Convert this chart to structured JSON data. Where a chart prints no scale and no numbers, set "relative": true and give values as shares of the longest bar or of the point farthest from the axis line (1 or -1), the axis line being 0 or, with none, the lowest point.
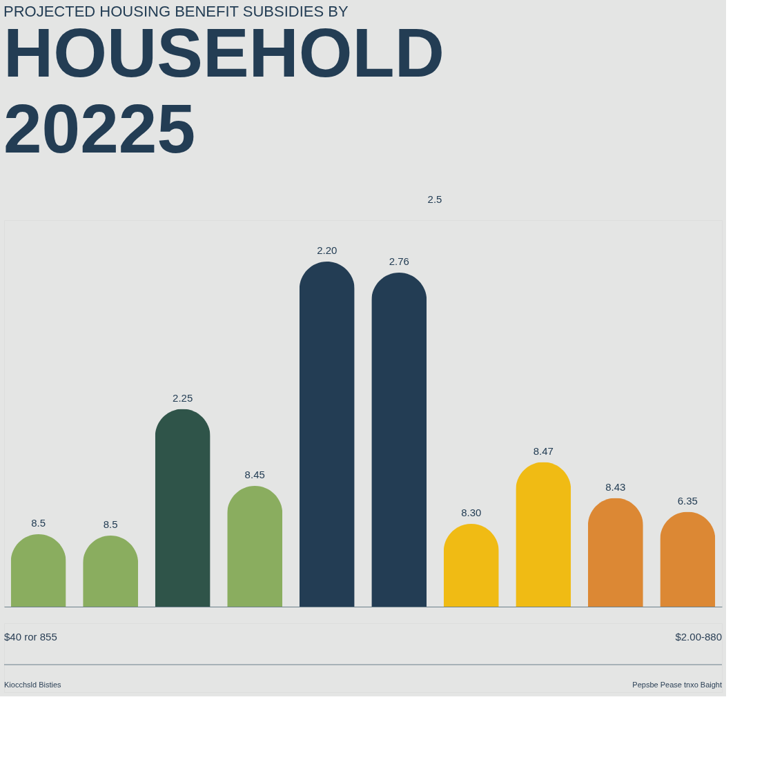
{
  "chart_data": {
    "type": "bar",
    "title": "PROJECTED HOUSING BENEFIT SUBSIDIES BY",
    "subtitle": [
      "HOUSEHOLD",
      "20225"
    ],
    "categories": [
      null,
      null,
      null,
      null,
      null,
      null,
      null,
      null,
      null,
      null
    ],
    "relative": true,
    "values": [
      0.21,
      0.206,
      0.573,
      0.35,
      1,
      0.968,
      0.24,
      0.419,
      0.315,
      0.275
    ],
    "colors": [
      "#8aad5f",
      "#8aad5f",
      "#2f5449",
      "#8aad5f",
      "#233d54",
      "#233d54",
      "#f0bb14",
      "#f0bb14",
      "#dc8834",
      "#dc8834"
    ],
    "annotations": [
      "8.5",
      "8.5",
      "2.25",
      "8.45",
      "2.20",
      "2.76",
      "8.30",
      "8.47",
      "8.43",
      "6.35",
      "2.5",
      "$40 ror 855",
      "$2.00-880",
      "Kiocchsld Bisties",
      "Pepsbe Pease tnxo Baight"
    ]
  }
}
